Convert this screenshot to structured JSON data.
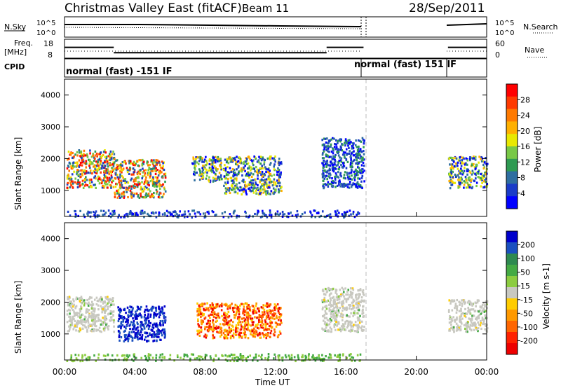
{
  "header": {
    "title": "Christmas Valley East (fitACF)",
    "beam": "Beam 11",
    "date": "28/Sep/2011"
  },
  "panels": {
    "nsky_label": "N.Sky",
    "nsky_ticks": [
      "10^5",
      "10^0"
    ],
    "nsearch_label": "N.Search",
    "freq_label_top": "Freq.",
    "freq_label_bottom": "[MHz]",
    "freq_ticks": [
      "18",
      "8"
    ],
    "nave_ticks": [
      "60",
      "0"
    ],
    "nave_label": "Nave",
    "cpid_label": "CPID",
    "cpid_mode_1": "normal (fast) -151 IF",
    "cpid_mode_2": "normal (fast) 151 IF"
  },
  "axes": {
    "ylabel": "Slant Range [km]",
    "yticks": [
      "4000",
      "3000",
      "2000",
      "1000"
    ],
    "xticks": [
      "00:00",
      "04:00",
      "08:00",
      "12:00",
      "16:00",
      "20:00",
      "00:00"
    ],
    "xlabel": "Time UT"
  },
  "colorbars": {
    "power": {
      "label": "Power [dB]",
      "ticks": [
        "28",
        "24",
        "20",
        "16",
        "12",
        "8",
        "4"
      ],
      "colors": [
        "#ff0000",
        "#ff3a00",
        "#ff7a00",
        "#ffb000",
        "#e8e800",
        "#78c846",
        "#2e9a52",
        "#2e6ea0",
        "#1a3cc8",
        "#0000ff"
      ]
    },
    "velocity": {
      "label": "Velocity [m s-1]",
      "ticks": [
        "200",
        "100",
        "50",
        "15",
        "-15",
        "-50",
        "-100",
        "-200"
      ],
      "colors": [
        "#0000cc",
        "#1a50c0",
        "#2e8a50",
        "#44aa44",
        "#8ccc40",
        "#c8c8c0",
        "#ffcc00",
        "#ff9900",
        "#ff6600",
        "#ff2200",
        "#ee0000"
      ]
    }
  },
  "chart_data": {
    "type": "heatmap",
    "title": "Christmas Valley East (fitACF)",
    "x_range_hours_ut": [
      0,
      24
    ],
    "y_range_km": [
      180,
      4500
    ],
    "xlabel": "Time UT",
    "ylabel": "Slant Range [km]",
    "data_gap_hours_ut": [
      17.0,
      21.8
    ],
    "frequency_mhz": [
      {
        "from": 0,
        "to": 2.8,
        "value": 14
      },
      {
        "from": 2.8,
        "to": 14.9,
        "value": 10
      },
      {
        "from": 14.9,
        "to": 17.0,
        "value": 14
      },
      {
        "from": 21.8,
        "to": 24,
        "value": 14
      }
    ],
    "power_regions": [
      {
        "t0": 0.1,
        "t1": 2.8,
        "r0": 1100,
        "r1": 2300,
        "level": "strong"
      },
      {
        "t0": 2.8,
        "t1": 5.7,
        "r0": 800,
        "r1": 2000,
        "level": "strong"
      },
      {
        "t0": 7.2,
        "t1": 8.9,
        "r0": 1300,
        "r1": 2100,
        "level": "medium"
      },
      {
        "t0": 9.0,
        "t1": 12.3,
        "r0": 900,
        "r1": 2100,
        "level": "medium"
      },
      {
        "t0": 14.6,
        "t1": 17.0,
        "r0": 1100,
        "r1": 2700,
        "level": "weak"
      },
      {
        "t0": 21.8,
        "t1": 24.0,
        "r0": 1100,
        "r1": 2100,
        "level": "medium"
      }
    ],
    "velocity_regions": [
      {
        "t0": 0.1,
        "t1": 2.8,
        "r0": 1100,
        "r1": 2200,
        "v": 0
      },
      {
        "t0": 3.0,
        "t1": 5.7,
        "r0": 800,
        "r1": 1900,
        "v": 200
      },
      {
        "t0": 7.5,
        "t1": 12.3,
        "r0": 900,
        "r1": 2000,
        "v": -80
      },
      {
        "t0": 14.6,
        "t1": 17.0,
        "r0": 1100,
        "r1": 2500,
        "v": 0
      },
      {
        "t0": 21.8,
        "t1": 24.0,
        "r0": 1100,
        "r1": 2100,
        "v": 0
      }
    ]
  }
}
